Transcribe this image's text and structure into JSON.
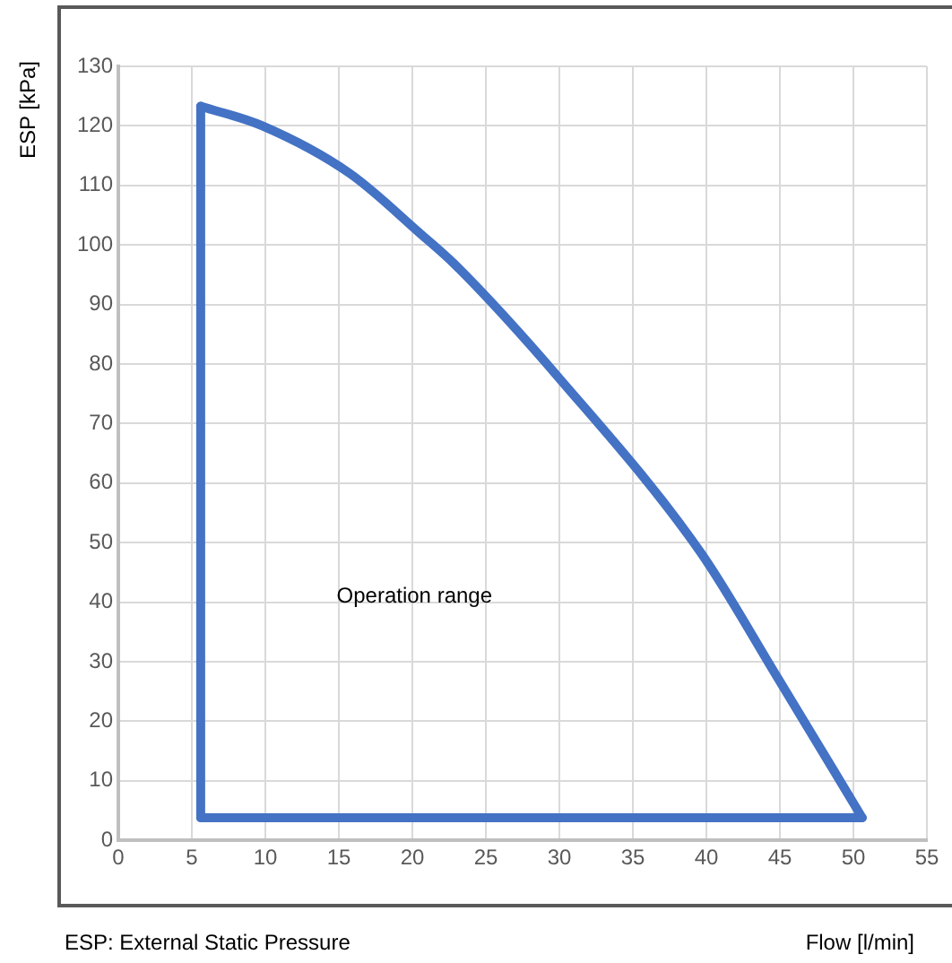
{
  "chart_data": {
    "type": "line",
    "ylabel": "ESP [kPa]",
    "xlabel": "Flow [l/min]",
    "series": [
      {
        "color": "#4472c4",
        "x": [
          5.6,
          5.6
        ],
        "values": [
          3.8,
          123.3
        ]
      },
      {
        "color": "#4472c4",
        "x": [
          5.6,
          9.8,
          15.75,
          20.5,
          22.9,
          30.1,
          39.6,
          44.8,
          50.6
        ],
        "values": [
          123.3,
          120,
          112,
          102,
          96.7,
          77.3,
          48.4,
          27.5,
          3.8
        ]
      },
      {
        "color": "#4472c4",
        "x": [
          5.6,
          50.6
        ],
        "values": [
          3.8,
          3.8
        ]
      }
    ],
    "xlim": [
      0,
      55
    ],
    "xticks": [
      0,
      5,
      10,
      15,
      20,
      25,
      30,
      35,
      40,
      45,
      50,
      55
    ],
    "ylim": [
      0,
      130
    ],
    "yticks": [
      0,
      10,
      20,
      30,
      40,
      50,
      60,
      70,
      80,
      90,
      100,
      110,
      120,
      130
    ],
    "grid": true,
    "marker": "none",
    "line_style": "solid",
    "legend": false,
    "annotations": [
      "Operation range",
      "ESP: External Static Pressure"
    ]
  }
}
